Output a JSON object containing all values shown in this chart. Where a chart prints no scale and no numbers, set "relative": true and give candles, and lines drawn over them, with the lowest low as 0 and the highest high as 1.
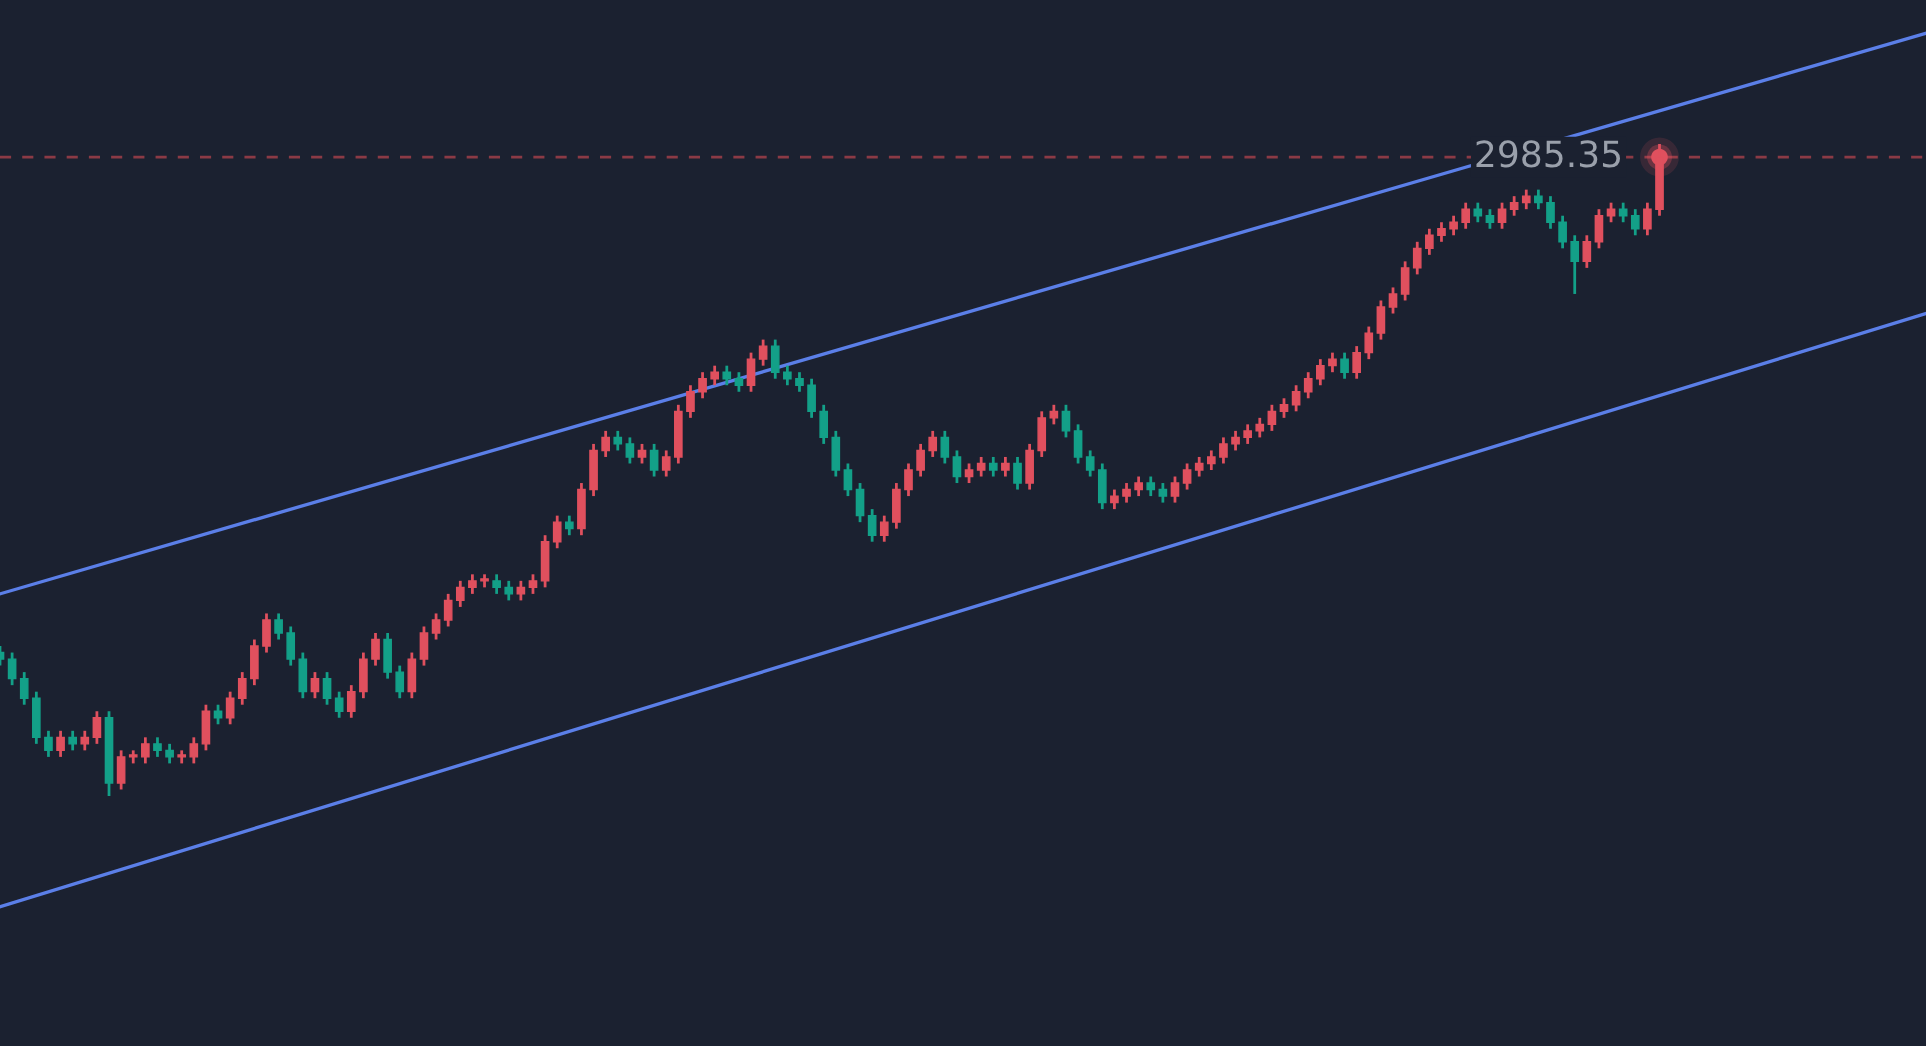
{
  "chart_data": {
    "type": "candlestick",
    "relative": true,
    "categories": [
      null,
      null,
      null,
      null,
      null,
      null,
      null,
      null,
      null,
      null,
      null,
      null,
      null,
      null,
      null,
      null,
      null,
      null,
      null,
      null,
      null,
      null,
      null,
      null,
      null,
      null,
      null,
      null,
      null,
      null,
      null,
      null,
      null,
      null,
      null,
      null,
      null,
      null,
      null,
      null,
      null,
      null,
      null,
      null,
      null,
      null,
      null,
      null,
      null,
      null,
      null,
      null,
      null,
      null,
      null,
      null,
      null,
      null,
      null,
      null,
      null,
      null,
      null,
      null,
      null,
      null,
      null,
      null,
      null,
      null,
      null,
      null,
      null,
      null,
      null,
      null,
      null,
      null,
      null,
      null,
      null,
      null,
      null,
      null,
      null,
      null,
      null,
      null,
      null,
      null,
      null,
      null,
      null,
      null,
      null,
      null,
      null,
      null,
      null,
      null,
      null,
      null,
      null,
      null,
      null,
      null,
      null,
      null,
      null,
      null,
      null,
      null,
      null,
      null,
      null,
      null,
      null,
      null,
      null,
      null,
      null,
      null,
      null,
      null,
      null,
      null,
      null,
      null,
      null,
      null,
      null,
      null,
      null,
      null,
      null,
      null,
      null,
      null,
      null,
      null,
      null,
      null,
      null,
      null,
      null,
      null,
      null,
      null,
      null,
      null,
      null,
      null,
      null,
      null,
      null,
      null,
      null,
      null,
      null,
      null
    ],
    "ohlc": [
      [
        0.22,
        0.23,
        0.2,
        0.21
      ],
      [
        0.21,
        0.22,
        0.17,
        0.18
      ],
      [
        0.18,
        0.19,
        0.14,
        0.15
      ],
      [
        0.15,
        0.16,
        0.08,
        0.09
      ],
      [
        0.09,
        0.1,
        0.06,
        0.07
      ],
      [
        0.07,
        0.1,
        0.06,
        0.09
      ],
      [
        0.09,
        0.1,
        0.07,
        0.08
      ],
      [
        0.08,
        0.1,
        0.07,
        0.09
      ],
      [
        0.09,
        0.13,
        0.08,
        0.12
      ],
      [
        0.12,
        0.13,
        0.0,
        0.02
      ],
      [
        0.02,
        0.07,
        0.01,
        0.06
      ],
      [
        0.06,
        0.07,
        0.05,
        0.06
      ],
      [
        0.06,
        0.09,
        0.05,
        0.08
      ],
      [
        0.08,
        0.09,
        0.06,
        0.07
      ],
      [
        0.07,
        0.08,
        0.05,
        0.06
      ],
      [
        0.06,
        0.07,
        0.05,
        0.06
      ],
      [
        0.06,
        0.09,
        0.05,
        0.08
      ],
      [
        0.08,
        0.14,
        0.07,
        0.13
      ],
      [
        0.13,
        0.14,
        0.11,
        0.12
      ],
      [
        0.12,
        0.16,
        0.11,
        0.15
      ],
      [
        0.15,
        0.19,
        0.14,
        0.18
      ],
      [
        0.18,
        0.24,
        0.17,
        0.23
      ],
      [
        0.23,
        0.28,
        0.22,
        0.27
      ],
      [
        0.27,
        0.28,
        0.24,
        0.25
      ],
      [
        0.25,
        0.26,
        0.2,
        0.21
      ],
      [
        0.21,
        0.22,
        0.15,
        0.16
      ],
      [
        0.16,
        0.19,
        0.15,
        0.18
      ],
      [
        0.18,
        0.19,
        0.14,
        0.15
      ],
      [
        0.15,
        0.16,
        0.12,
        0.13
      ],
      [
        0.13,
        0.17,
        0.12,
        0.16
      ],
      [
        0.16,
        0.22,
        0.15,
        0.21
      ],
      [
        0.21,
        0.25,
        0.2,
        0.24
      ],
      [
        0.24,
        0.25,
        0.18,
        0.19
      ],
      [
        0.19,
        0.2,
        0.15,
        0.16
      ],
      [
        0.16,
        0.22,
        0.15,
        0.21
      ],
      [
        0.21,
        0.26,
        0.2,
        0.25
      ],
      [
        0.25,
        0.28,
        0.24,
        0.27
      ],
      [
        0.27,
        0.31,
        0.26,
        0.3
      ],
      [
        0.3,
        0.33,
        0.29,
        0.32
      ],
      [
        0.32,
        0.34,
        0.31,
        0.33
      ],
      [
        0.33,
        0.34,
        0.32,
        0.33
      ],
      [
        0.33,
        0.34,
        0.31,
        0.32
      ],
      [
        0.32,
        0.33,
        0.3,
        0.31
      ],
      [
        0.31,
        0.33,
        0.3,
        0.32
      ],
      [
        0.32,
        0.34,
        0.31,
        0.33
      ],
      [
        0.33,
        0.4,
        0.32,
        0.39
      ],
      [
        0.39,
        0.43,
        0.38,
        0.42
      ],
      [
        0.42,
        0.43,
        0.4,
        0.41
      ],
      [
        0.41,
        0.48,
        0.4,
        0.47
      ],
      [
        0.47,
        0.54,
        0.46,
        0.53
      ],
      [
        0.53,
        0.56,
        0.52,
        0.55
      ],
      [
        0.55,
        0.56,
        0.53,
        0.54
      ],
      [
        0.54,
        0.55,
        0.51,
        0.52
      ],
      [
        0.52,
        0.54,
        0.51,
        0.53
      ],
      [
        0.53,
        0.54,
        0.49,
        0.5
      ],
      [
        0.5,
        0.53,
        0.49,
        0.52
      ],
      [
        0.52,
        0.6,
        0.51,
        0.59
      ],
      [
        0.59,
        0.63,
        0.58,
        0.62
      ],
      [
        0.62,
        0.65,
        0.61,
        0.64
      ],
      [
        0.64,
        0.66,
        0.63,
        0.65
      ],
      [
        0.65,
        0.66,
        0.63,
        0.64
      ],
      [
        0.64,
        0.65,
        0.62,
        0.63
      ],
      [
        0.63,
        0.68,
        0.62,
        0.67
      ],
      [
        0.67,
        0.7,
        0.66,
        0.69
      ],
      [
        0.69,
        0.7,
        0.64,
        0.65
      ],
      [
        0.65,
        0.66,
        0.63,
        0.64
      ],
      [
        0.64,
        0.65,
        0.62,
        0.63
      ],
      [
        0.63,
        0.64,
        0.58,
        0.59
      ],
      [
        0.59,
        0.6,
        0.54,
        0.55
      ],
      [
        0.55,
        0.56,
        0.49,
        0.5
      ],
      [
        0.5,
        0.51,
        0.46,
        0.47
      ],
      [
        0.47,
        0.48,
        0.42,
        0.43
      ],
      [
        0.43,
        0.44,
        0.39,
        0.4
      ],
      [
        0.4,
        0.43,
        0.39,
        0.42
      ],
      [
        0.42,
        0.48,
        0.41,
        0.47
      ],
      [
        0.47,
        0.51,
        0.46,
        0.5
      ],
      [
        0.5,
        0.54,
        0.49,
        0.53
      ],
      [
        0.53,
        0.56,
        0.52,
        0.55
      ],
      [
        0.55,
        0.56,
        0.51,
        0.52
      ],
      [
        0.52,
        0.53,
        0.48,
        0.49
      ],
      [
        0.49,
        0.51,
        0.48,
        0.5
      ],
      [
        0.5,
        0.52,
        0.49,
        0.51
      ],
      [
        0.51,
        0.52,
        0.49,
        0.5
      ],
      [
        0.5,
        0.52,
        0.49,
        0.51
      ],
      [
        0.51,
        0.52,
        0.47,
        0.48
      ],
      [
        0.48,
        0.54,
        0.47,
        0.53
      ],
      [
        0.53,
        0.59,
        0.52,
        0.58
      ],
      [
        0.58,
        0.6,
        0.57,
        0.59
      ],
      [
        0.59,
        0.6,
        0.55,
        0.56
      ],
      [
        0.56,
        0.57,
        0.51,
        0.52
      ],
      [
        0.52,
        0.53,
        0.49,
        0.5
      ],
      [
        0.5,
        0.51,
        0.44,
        0.45
      ],
      [
        0.45,
        0.47,
        0.44,
        0.46
      ],
      [
        0.46,
        0.48,
        0.45,
        0.47
      ],
      [
        0.47,
        0.49,
        0.46,
        0.48
      ],
      [
        0.48,
        0.49,
        0.46,
        0.47
      ],
      [
        0.47,
        0.48,
        0.45,
        0.46
      ],
      [
        0.46,
        0.49,
        0.45,
        0.48
      ],
      [
        0.48,
        0.51,
        0.47,
        0.5
      ],
      [
        0.5,
        0.52,
        0.49,
        0.51
      ],
      [
        0.51,
        0.53,
        0.5,
        0.52
      ],
      [
        0.52,
        0.55,
        0.51,
        0.54
      ],
      [
        0.54,
        0.56,
        0.53,
        0.55
      ],
      [
        0.55,
        0.57,
        0.54,
        0.56
      ],
      [
        0.56,
        0.58,
        0.55,
        0.57
      ],
      [
        0.57,
        0.6,
        0.56,
        0.59
      ],
      [
        0.59,
        0.61,
        0.58,
        0.6
      ],
      [
        0.6,
        0.63,
        0.59,
        0.62
      ],
      [
        0.62,
        0.65,
        0.61,
        0.64
      ],
      [
        0.64,
        0.67,
        0.63,
        0.66
      ],
      [
        0.66,
        0.68,
        0.65,
        0.67
      ],
      [
        0.67,
        0.68,
        0.64,
        0.65
      ],
      [
        0.65,
        0.69,
        0.64,
        0.68
      ],
      [
        0.68,
        0.72,
        0.67,
        0.71
      ],
      [
        0.71,
        0.76,
        0.7,
        0.75
      ],
      [
        0.75,
        0.78,
        0.74,
        0.77
      ],
      [
        0.77,
        0.82,
        0.76,
        0.81
      ],
      [
        0.81,
        0.85,
        0.8,
        0.84
      ],
      [
        0.84,
        0.87,
        0.83,
        0.86
      ],
      [
        0.86,
        0.88,
        0.85,
        0.87
      ],
      [
        0.87,
        0.89,
        0.86,
        0.88
      ],
      [
        0.88,
        0.91,
        0.87,
        0.9
      ],
      [
        0.9,
        0.91,
        0.88,
        0.89
      ],
      [
        0.89,
        0.9,
        0.87,
        0.88
      ],
      [
        0.88,
        0.91,
        0.87,
        0.9
      ],
      [
        0.9,
        0.92,
        0.89,
        0.91
      ],
      [
        0.91,
        0.93,
        0.9,
        0.92
      ],
      [
        0.92,
        0.93,
        0.9,
        0.91
      ],
      [
        0.91,
        0.92,
        0.87,
        0.88
      ],
      [
        0.88,
        0.89,
        0.84,
        0.85
      ],
      [
        0.85,
        0.86,
        0.77,
        0.82
      ],
      [
        0.82,
        0.86,
        0.81,
        0.85
      ],
      [
        0.85,
        0.9,
        0.84,
        0.89
      ],
      [
        0.89,
        0.91,
        0.88,
        0.9
      ],
      [
        0.9,
        0.91,
        0.88,
        0.89
      ],
      [
        0.89,
        0.9,
        0.86,
        0.87
      ],
      [
        0.87,
        0.91,
        0.86,
        0.9
      ],
      [
        0.9,
        1.0,
        0.89,
        0.98
      ],
      null,
      null,
      null,
      null,
      null,
      null,
      null,
      null,
      null,
      null,
      null,
      null,
      null,
      null,
      null,
      null,
      null,
      null,
      null,
      null,
      null,
      null
    ],
    "series": [
      {
        "type": "line",
        "color": "#5b7fe8",
        "values": [
          0.31,
          null,
          null,
          null,
          null,
          null,
          null,
          null,
          null,
          null,
          null,
          null,
          null,
          null,
          null,
          null,
          null,
          null,
          null,
          null,
          null,
          null,
          null,
          null,
          null,
          null,
          null,
          null,
          null,
          null,
          null,
          null,
          null,
          null,
          null,
          null,
          null,
          null,
          null,
          null,
          null,
          null,
          null,
          null,
          null,
          null,
          null,
          null,
          null,
          null,
          null,
          null,
          null,
          null,
          null,
          null,
          null,
          null,
          null,
          null,
          null,
          null,
          null,
          null,
          null,
          null,
          null,
          null,
          null,
          null,
          null,
          null,
          null,
          null,
          null,
          null,
          null,
          null,
          null,
          null,
          null,
          null,
          null,
          null,
          null,
          null,
          null,
          null,
          null,
          null,
          null,
          null,
          null,
          null,
          null,
          null,
          null,
          null,
          null,
          null,
          null,
          null,
          null,
          null,
          null,
          null,
          null,
          null,
          null,
          null,
          null,
          null,
          null,
          null,
          null,
          null,
          null,
          null,
          null,
          null,
          null,
          null,
          null,
          null,
          null,
          null,
          null,
          null,
          null,
          null,
          null,
          null,
          null,
          null,
          null,
          null,
          null,
          null,
          null,
          null,
          null,
          null,
          null,
          null,
          null,
          null,
          null,
          null,
          null,
          null,
          null,
          null,
          null,
          null,
          null,
          null,
          null,
          null,
          null,
          1.17
        ]
      },
      {
        "type": "line",
        "color": "#5b7fe8",
        "values": [
          -0.17,
          null,
          null,
          null,
          null,
          null,
          null,
          null,
          null,
          null,
          null,
          null,
          null,
          null,
          null,
          null,
          null,
          null,
          null,
          null,
          null,
          null,
          null,
          null,
          null,
          null,
          null,
          null,
          null,
          null,
          null,
          null,
          null,
          null,
          null,
          null,
          null,
          null,
          null,
          null,
          null,
          null,
          null,
          null,
          null,
          null,
          null,
          null,
          null,
          null,
          null,
          null,
          null,
          null,
          null,
          null,
          null,
          null,
          null,
          null,
          null,
          null,
          null,
          null,
          null,
          null,
          null,
          null,
          null,
          null,
          null,
          null,
          null,
          null,
          null,
          null,
          null,
          null,
          null,
          null,
          null,
          null,
          null,
          null,
          null,
          null,
          null,
          null,
          null,
          null,
          null,
          null,
          null,
          null,
          null,
          null,
          null,
          null,
          null,
          null,
          null,
          null,
          null,
          null,
          null,
          null,
          null,
          null,
          null,
          null,
          null,
          null,
          null,
          null,
          null,
          null,
          null,
          null,
          null,
          null,
          null,
          null,
          null,
          null,
          null,
          null,
          null,
          null,
          null,
          null,
          null,
          null,
          null,
          null,
          null,
          null,
          null,
          null,
          null,
          null,
          null,
          null,
          null,
          null,
          null,
          null,
          null,
          null,
          null,
          null,
          null,
          null,
          null,
          null,
          null,
          null,
          null,
          null,
          null,
          0.74
        ]
      }
    ],
    "ref_lines": [
      {
        "axis": "y",
        "value": 0.98,
        "color": "#8b3a45",
        "line_style": "dashed"
      }
    ],
    "annotations": [
      "2985.35"
    ]
  }
}
